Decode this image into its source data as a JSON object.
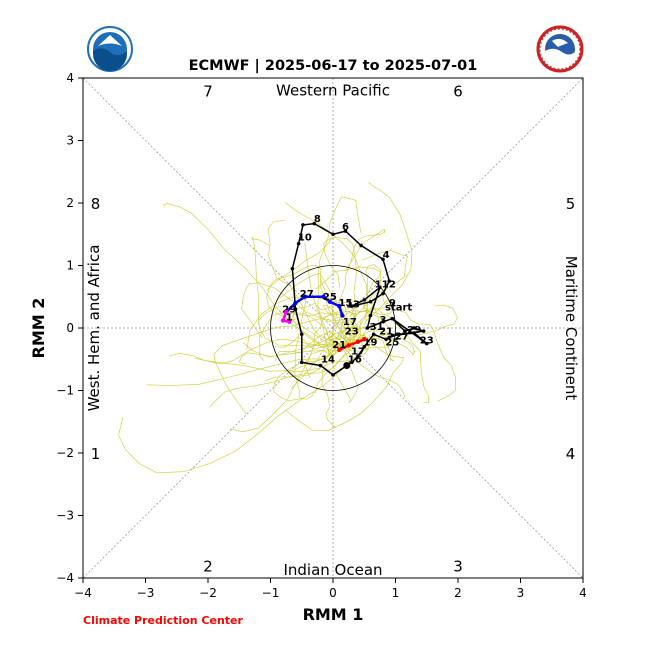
{
  "chart_data": {
    "type": "line",
    "title": "ECMWF | 2025-06-17 to 2025-07-01",
    "xlabel": "RMM 1",
    "ylabel": "RMM 2",
    "xlim": [
      -4,
      4
    ],
    "ylim": [
      -4,
      4
    ],
    "ticks": [
      -4,
      -3,
      -2,
      -1,
      0,
      1,
      2,
      3,
      4
    ],
    "tick_labels": [
      "−4",
      "−3",
      "−2",
      "−1",
      "0",
      "1",
      "2",
      "3",
      "4"
    ],
    "unit_circle_radius": 1,
    "phase_numbers": [
      {
        "label": "7",
        "x": -2.0,
        "y": 3.8
      },
      {
        "label": "6",
        "x": 2.0,
        "y": 3.8
      },
      {
        "label": "5",
        "x": 3.8,
        "y": 2.0
      },
      {
        "label": "4",
        "x": 3.8,
        "y": -2.0
      },
      {
        "label": "3",
        "x": 2.0,
        "y": -3.8
      },
      {
        "label": "2",
        "x": -2.0,
        "y": -3.8
      },
      {
        "label": "1",
        "x": -3.8,
        "y": -2.0
      },
      {
        "label": "8",
        "x": -3.8,
        "y": 2.0
      }
    ],
    "region_labels": {
      "top": "Western Pacific",
      "bottom": "Indian Ocean",
      "left": "West. Hem. and Africa",
      "right": "Maritime Continent"
    },
    "series": [
      {
        "color": "#000000",
        "points": [
          [
            0.95,
            0.15
          ],
          [
            1.5,
            -0.25
          ],
          [
            1.3,
            -0.08
          ],
          [
            0.95,
            -0.12
          ],
          [
            0.85,
            -0.18
          ],
          [
            0.65,
            -0.1
          ],
          [
            0.5,
            -0.3
          ],
          [
            0.4,
            -0.45
          ],
          [
            0.3,
            -0.55
          ],
          [
            0.22,
            -0.6
          ],
          [
            0.0,
            -0.75
          ],
          [
            -0.2,
            -0.6
          ],
          [
            -0.5,
            -0.55
          ],
          [
            -0.5,
            -0.1
          ],
          [
            -0.6,
            0.3
          ],
          [
            -0.65,
            0.95
          ],
          [
            -0.55,
            1.35
          ],
          [
            -0.48,
            1.65
          ],
          [
            -0.3,
            1.67
          ],
          [
            0.0,
            1.5
          ],
          [
            0.2,
            1.55
          ],
          [
            0.45,
            1.32
          ],
          [
            0.8,
            1.1
          ],
          [
            0.9,
            0.75
          ],
          [
            0.8,
            0.55
          ],
          [
            0.6,
            0.42
          ],
          [
            0.3,
            0.35
          ],
          [
            0.5,
            0.45
          ],
          [
            0.75,
            0.65
          ],
          [
            0.6,
            0.2
          ],
          [
            0.55,
            0.0
          ],
          [
            0.8,
            0.1
          ],
          [
            0.95,
            0.15
          ],
          [
            1.15,
            -0.05
          ],
          [
            1.3,
            0.0
          ],
          [
            1.45,
            -0.05
          ],
          [
            1.05,
            -0.1
          ],
          [
            0.9,
            -0.15
          ]
        ],
        "labels": [
          {
            "text": "23",
            "x": 1.5,
            "y": -0.25
          },
          {
            "text": "29",
            "x": 1.3,
            "y": -0.08
          },
          {
            "text": "25",
            "x": 0.95,
            "y": -0.28
          },
          {
            "text": "21",
            "x": 0.85,
            "y": -0.1
          },
          {
            "text": "19",
            "x": 0.6,
            "y": -0.28
          },
          {
            "text": "17",
            "x": 0.4,
            "y": -0.42
          },
          {
            "text": "16",
            "x": 0.35,
            "y": -0.55
          },
          {
            "text": "14",
            "x": -0.08,
            "y": -0.55
          },
          {
            "text": "10",
            "x": -0.45,
            "y": 1.4
          },
          {
            "text": "8",
            "x": -0.25,
            "y": 1.7
          },
          {
            "text": "6",
            "x": 0.2,
            "y": 1.57
          },
          {
            "text": "4",
            "x": 0.85,
            "y": 1.12
          },
          {
            "text": "2",
            "x": 0.95,
            "y": 0.65
          },
          {
            "text": "9",
            "x": 0.95,
            "y": 0.35
          },
          {
            "text": "start",
            "x": 1.05,
            "y": 0.28
          },
          {
            "text": "3",
            "x": 0.8,
            "y": 0.08
          },
          {
            "text": "31",
            "x": 0.7,
            "y": -0.03
          },
          {
            "text": "27",
            "x": 1.1,
            "y": -0.18
          },
          {
            "text": "11",
            "x": 0.78,
            "y": 0.65
          }
        ]
      },
      {
        "color": "#0000ff",
        "points": [
          [
            0.15,
            0.2
          ],
          [
            0.1,
            0.35
          ],
          [
            -0.05,
            0.42
          ],
          [
            -0.15,
            0.5
          ],
          [
            -0.45,
            0.5
          ],
          [
            -0.6,
            0.4
          ],
          [
            -0.75,
            0.25
          ]
        ],
        "labels": [
          {
            "text": "15",
            "x": 0.2,
            "y": 0.35
          },
          {
            "text": "13",
            "x": 0.32,
            "y": 0.33
          },
          {
            "text": "17",
            "x": 0.27,
            "y": 0.05
          },
          {
            "text": "27",
            "x": -0.42,
            "y": 0.5
          },
          {
            "text": "25",
            "x": -0.05,
            "y": 0.45
          },
          {
            "text": "29",
            "x": -0.7,
            "y": 0.25
          }
        ]
      },
      {
        "color": "#ff00ff",
        "points": [
          [
            -0.75,
            0.25
          ],
          [
            -0.8,
            0.12
          ],
          [
            -0.7,
            0.1
          ]
        ],
        "labels": [
          {
            "text": "1",
            "x": -0.7,
            "y": 0.12
          }
        ]
      },
      {
        "color": "#ff0000",
        "points": [
          [
            0.1,
            -0.35
          ],
          [
            0.25,
            -0.28
          ],
          [
            0.4,
            -0.22
          ],
          [
            0.5,
            -0.18
          ]
        ],
        "labels": [
          {
            "text": "21",
            "x": 0.1,
            "y": -0.32
          },
          {
            "text": "23",
            "x": 0.3,
            "y": -0.1
          }
        ]
      }
    ]
  },
  "credit": "Climate Prediction Center",
  "colors": {
    "ensemble": "#cccc33",
    "credit": "#ff0000",
    "grid": "#999999"
  }
}
